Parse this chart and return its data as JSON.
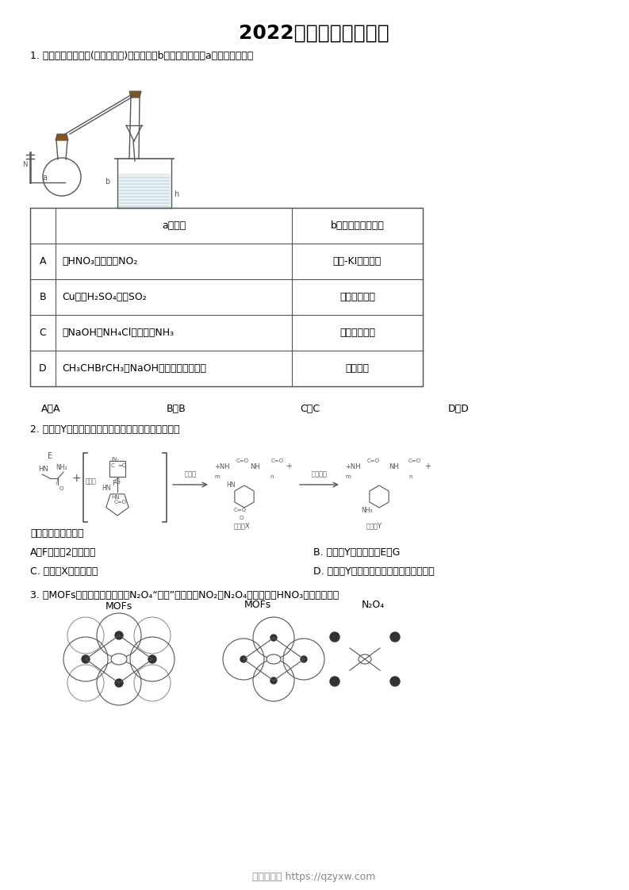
{
  "title": "2022年北京卷部分试题",
  "title_fontsize": 18,
  "background_color": "#ffffff",
  "text_color": "#000000",
  "footer_text": "启智优学网 https://qzyxw.com",
  "footer_color": "#888888",
  "q1_intro": "1. 利用如图所示装置(夹持装置略)进行实验，b中现象不能证明a中产物生成的是",
  "table_header_col2": "a中反应",
  "table_header_col3": "b中检测试剂及现象",
  "table_rows": [
    [
      "A",
      "浓HNO₃分解生成NO₂",
      "淀粉-KI溶液变蓝"
    ],
    [
      "B",
      "Cu与浓H₂SO₄生成SO₂",
      "品红溶液褪色"
    ],
    [
      "C",
      "浓NaOH与NH₄Cl溶液生成NH₃",
      "酚酞溶液变红"
    ],
    [
      "D",
      "CH₃CHBrCH₃与NaOH乙醇溶液生成丙烯",
      "溴水褪色"
    ]
  ],
  "q1_options": [
    "A．A",
    "B．B",
    "C．C",
    "D．D"
  ],
  "q2_intro": "2. 高分子Y是一种人工合成的多肽，其合成路线如下。",
  "q2_below": "下列说法不正确的是",
  "q2_opt_A": "A．F中含有2个酰胺基",
  "q2_opt_B": "B. 高分子Y水解可得到E和G",
  "q2_opt_C": "C. 高分子X中存在氢键",
  "q2_opt_D": "D. 高分子Y的合成过程中进行了官能团保护",
  "q3_intro_p1": "3. 某MOFs的多孔材料刚好可将N",
  "q3_intro_p2": "2",
  "q3_intro_p3": "O",
  "q3_intro_p4": "4",
  "q3_intro_p5": "“固定”，实现了NO",
  "q3_intro_p6": "2",
  "q3_intro_p7": "与N",
  "q3_intro_p8": "2",
  "q3_intro_p9": "O",
  "q3_intro_p10": "4",
  "q3_intro_p11": "分离并制备HNO",
  "q3_intro_p12": "3",
  "q3_intro_p13": "，如图所示：",
  "mofs_label": "MOFs",
  "n2o4_label": "N₂O₄"
}
